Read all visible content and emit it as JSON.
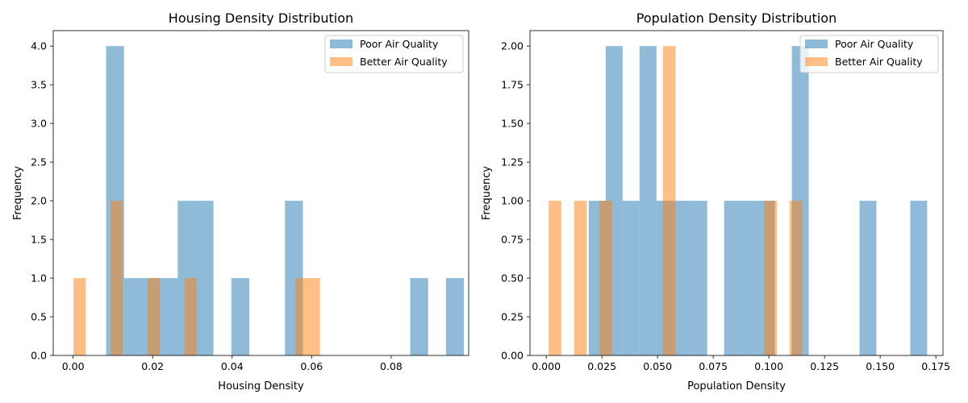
{
  "chart_data": [
    {
      "type": "bar",
      "title": "Housing Density Distribution",
      "xlabel": "Housing Density",
      "ylabel": "Frequency",
      "xlim": [
        -0.005,
        0.0995
      ],
      "ylim": [
        0,
        4.2
      ],
      "xticks": [
        0.0,
        0.02,
        0.04,
        0.06,
        0.08
      ],
      "xtick_labels": [
        "0.00",
        "0.02",
        "0.04",
        "0.06",
        "0.08"
      ],
      "yticks": [
        0.0,
        0.5,
        1.0,
        1.5,
        2.0,
        2.5,
        3.0,
        3.5,
        4.0
      ],
      "ytick_labels": [
        "0.0",
        "0.5",
        "1.0",
        "1.5",
        "2.0",
        "2.5",
        "3.0",
        "3.5",
        "4.0"
      ],
      "legend": {
        "position": "top-right"
      },
      "series": [
        {
          "name": "Poor Air Quality",
          "color": "#1f77b4",
          "alpha": 0.5,
          "bins": [
            [
              0.0083,
              0.0128,
              4
            ],
            [
              0.0128,
              0.0173,
              1
            ],
            [
              0.0173,
              0.0218,
              1
            ],
            [
              0.0218,
              0.0263,
              1
            ],
            [
              0.0263,
              0.0308,
              2
            ],
            [
              0.0308,
              0.0353,
              2
            ],
            [
              0.0398,
              0.0443,
              1
            ],
            [
              0.0533,
              0.0578,
              2
            ],
            [
              0.0848,
              0.0893,
              1
            ],
            [
              0.0938,
              0.0983,
              1
            ]
          ]
        },
        {
          "name": "Better Air Quality",
          "color": "#ff7f0e",
          "alpha": 0.5,
          "bins": [
            [
              0.0001,
              0.0032,
              1
            ],
            [
              0.0094,
              0.0125,
              2
            ],
            [
              0.0187,
              0.0218,
              1
            ],
            [
              0.028,
              0.0311,
              1
            ],
            [
              0.0559,
              0.059,
              1
            ],
            [
              0.059,
              0.0621,
              1
            ]
          ]
        }
      ]
    },
    {
      "type": "bar",
      "title": "Population Density Distribution",
      "xlabel": "Population Density",
      "ylabel": "Frequency",
      "xlim": [
        -0.0073,
        0.1782
      ],
      "ylim": [
        0,
        2.1
      ],
      "xticks": [
        0.0,
        0.025,
        0.05,
        0.075,
        0.1,
        0.125,
        0.15,
        0.175
      ],
      "xtick_labels": [
        "0.000",
        "0.025",
        "0.050",
        "0.075",
        "0.100",
        "0.125",
        "0.150",
        "0.175"
      ],
      "yticks": [
        0.0,
        0.25,
        0.5,
        0.75,
        1.0,
        1.25,
        1.5,
        1.75,
        2.0
      ],
      "ytick_labels": [
        "0.00",
        "0.25",
        "0.50",
        "0.75",
        "1.00",
        "1.25",
        "1.50",
        "1.75",
        "2.00"
      ],
      "legend": {
        "position": "top-right"
      },
      "series": [
        {
          "name": "Poor Air Quality",
          "color": "#1f77b4",
          "alpha": 0.5,
          "bins": [
            [
              0.0191,
              0.0267,
              1
            ],
            [
              0.0267,
              0.0343,
              2
            ],
            [
              0.0343,
              0.0419,
              1
            ],
            [
              0.0419,
              0.0495,
              2
            ],
            [
              0.0495,
              0.0571,
              1
            ],
            [
              0.0571,
              0.0647,
              1
            ],
            [
              0.0647,
              0.0723,
              1
            ],
            [
              0.0799,
              0.0875,
              1
            ],
            [
              0.0875,
              0.0951,
              1
            ],
            [
              0.0951,
              0.1027,
              1
            ],
            [
              0.1103,
              0.1179,
              2
            ],
            [
              0.1407,
              0.1483,
              1
            ],
            [
              0.1635,
              0.1711,
              1
            ]
          ]
        },
        {
          "name": "Better Air Quality",
          "color": "#ff7f0e",
          "alpha": 0.5,
          "bins": [
            [
              0.0011,
              0.0068,
              1
            ],
            [
              0.0125,
              0.0182,
              1
            ],
            [
              0.0239,
              0.0296,
              1
            ],
            [
              0.0524,
              0.0581,
              2
            ],
            [
              0.0979,
              0.1036,
              1
            ],
            [
              0.1093,
              0.115,
              1
            ]
          ]
        }
      ]
    }
  ]
}
